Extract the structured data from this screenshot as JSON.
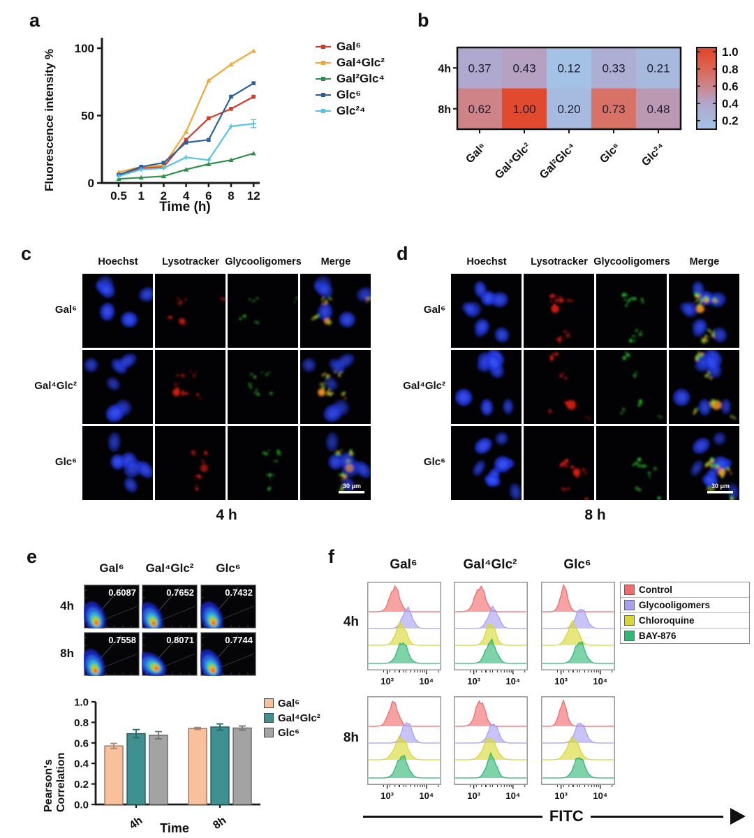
{
  "panel_labels": {
    "a": "a",
    "b": "b",
    "c": "c",
    "d": "d",
    "e": "e",
    "f": "f"
  },
  "chart_data": [
    {
      "id": "a_line",
      "type": "line",
      "title": "",
      "xlabel": "Time (h)",
      "ylabel": "Fluorescence intensity %",
      "categories": [
        "0.5",
        "1",
        "2",
        "4",
        "6",
        "8",
        "12"
      ],
      "ylim": [
        0,
        110
      ],
      "yticks": [
        0,
        50,
        100
      ],
      "grid": false,
      "legend_position": "right",
      "series": [
        {
          "name": "Gal⁶",
          "color": "#d23b2b",
          "marker": "square",
          "values": [
            6,
            11,
            12,
            32,
            48,
            55,
            64
          ]
        },
        {
          "name": "Gal⁴Glc²",
          "color": "#f6a733",
          "marker": "triangle",
          "values": [
            8,
            12,
            13,
            38,
            76,
            88,
            98
          ]
        },
        {
          "name": "Gal²Glc⁴",
          "color": "#2f8f4c",
          "marker": "triangle",
          "values": [
            3,
            4,
            5,
            10,
            14,
            17,
            22
          ]
        },
        {
          "name": "Glc⁶",
          "color": "#2c5f9e",
          "marker": "square",
          "values": [
            6,
            12,
            15,
            30,
            32,
            64,
            74
          ]
        },
        {
          "name": "Glc²⁴",
          "color": "#56c3e6",
          "marker": "plus",
          "values": [
            5,
            10,
            11,
            19,
            17,
            42,
            44
          ],
          "errors": [
            0,
            0,
            0,
            0,
            0,
            0,
            3
          ]
        }
      ]
    },
    {
      "id": "b_heatmap",
      "type": "heatmap",
      "rows": [
        "4h",
        "8h"
      ],
      "columns": [
        "Gal⁶",
        "Gal⁴Glc²",
        "Gal²Glc⁴",
        "Glc⁶",
        "Glc²⁴"
      ],
      "values": [
        [
          0.37,
          0.43,
          0.12,
          0.33,
          0.21
        ],
        [
          0.62,
          1.0,
          0.2,
          0.73,
          0.48
        ]
      ],
      "labels": [
        [
          "0.37",
          "0.43",
          "0.12",
          "0.33",
          "0.21"
        ],
        [
          "0.62",
          "1.00",
          "0.20",
          "0.73",
          "0.48"
        ]
      ],
      "colorbar_ticks": [
        "1.0",
        "0.8",
        "0.6",
        "0.4",
        "0.2"
      ],
      "color_low": "#a2c4e8",
      "color_high": "#e14a2e"
    },
    {
      "id": "e_density",
      "type": "scatter",
      "subtype": "colocalization-density-maps",
      "rows": [
        "4h",
        "8h"
      ],
      "columns": [
        "Gal⁶",
        "Gal⁴Glc²",
        "Glc⁶"
      ],
      "values": [
        [
          0.6087,
          0.7652,
          0.7432
        ],
        [
          0.7558,
          0.8071,
          0.7744
        ]
      ],
      "labels": [
        [
          "0.6087",
          "0.7652",
          "0.7432"
        ],
        [
          "0.7558",
          "0.8071",
          "0.7744"
        ]
      ]
    },
    {
      "id": "e_bar",
      "type": "bar",
      "xlabel": "Time",
      "ylabel": "Pearson's Correlation",
      "categories": [
        "4h",
        "8h"
      ],
      "ylim": [
        0,
        1.0
      ],
      "ytick_labels": [
        "0.0",
        "0.2",
        "0.4",
        "0.6",
        "0.8",
        "1.0"
      ],
      "series": [
        {
          "name": "Gal⁶",
          "color": "#f9c09c",
          "values": [
            0.57,
            0.74
          ],
          "errors": [
            0.025,
            0.01
          ]
        },
        {
          "name": "Gal⁴Glc²",
          "color": "#3f9191",
          "values": [
            0.69,
            0.755
          ],
          "errors": [
            0.04,
            0.03
          ]
        },
        {
          "name": "Glc⁶",
          "color": "#a3a3a3",
          "values": [
            0.675,
            0.745
          ],
          "errors": [
            0.035,
            0.02
          ]
        }
      ]
    },
    {
      "id": "f_hist",
      "type": "area",
      "subtype": "flow-cytometry-ridge-histograms",
      "xlabel": "FITC",
      "xtick_labels": [
        "10³",
        "10⁴"
      ],
      "xscale": "log",
      "rows": [
        "4h",
        "8h"
      ],
      "columns": [
        "Gal⁶",
        "Gal⁴Glc²",
        "Glc⁶"
      ],
      "series": [
        {
          "name": "Control",
          "color": "#f26a6a",
          "peak_fitc": [
            1500,
            1500,
            1150
          ]
        },
        {
          "name": "Glycooligomers",
          "color": "#a79ff2",
          "peak_fitc": [
            3300,
            3100,
            3200
          ]
        },
        {
          "name": "Chloroquine",
          "color": "#d8d832",
          "peak_fitc": [
            2200,
            2600,
            1950
          ]
        },
        {
          "name": "BAY-876",
          "color": "#2fb873",
          "peak_fitc": [
            2500,
            2700,
            3000
          ]
        }
      ]
    }
  ],
  "microscopy": {
    "col_headers": [
      "Hoechst",
      "Lysotracker",
      "Glycooligomers",
      "Merge"
    ],
    "c": {
      "row_labels": [
        "Gal⁶",
        "Gal⁴Glc²",
        "Glc⁶"
      ],
      "caption": "4 h",
      "scale_bar": "30 μm"
    },
    "d": {
      "row_labels": [
        "Gal⁶",
        "Gal⁴Glc²",
        "Glc⁶"
      ],
      "caption": "8 h",
      "scale_bar": "30 μm"
    }
  }
}
